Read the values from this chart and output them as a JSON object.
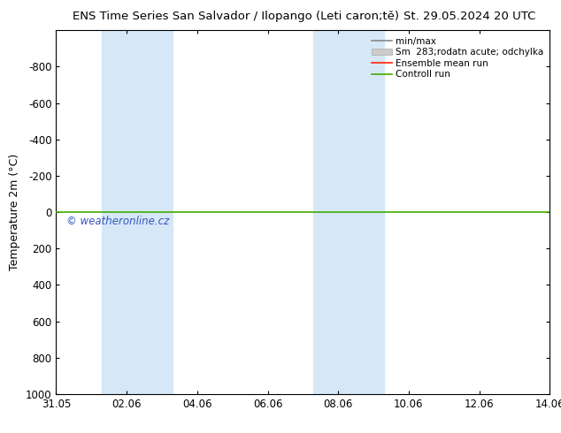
{
  "title_left": "ENS Time Series San Salvador / Ilopango (Leti caron;tě)",
  "title_right": "St. 29.05.2024 20 UTC",
  "ylabel": "Temperature 2m (°C)",
  "ylim_bottom": -1000,
  "ylim_top": 1000,
  "yticks": [
    -800,
    -600,
    -400,
    -200,
    0,
    200,
    400,
    600,
    800,
    1000
  ],
  "xlim_start": 0,
  "xlim_end": 14,
  "xtick_positions": [
    0,
    2,
    4,
    6,
    8,
    10,
    12,
    14
  ],
  "xtick_labels": [
    "31.05",
    "02.06",
    "04.06",
    "06.06",
    "08.06",
    "10.06",
    "12.06",
    "14.06"
  ],
  "shaded_columns": [
    {
      "x_start": 1.3,
      "x_end": 2.0
    },
    {
      "x_start": 2.0,
      "x_end": 3.3
    },
    {
      "x_start": 7.3,
      "x_end": 8.0
    },
    {
      "x_start": 8.0,
      "x_end": 9.3
    }
  ],
  "shade_color": "#d6e8f7",
  "control_run_y": 0,
  "control_run_color": "#44aa00",
  "ensemble_mean_color": "#ff2200",
  "minmax_color": "#888888",
  "std_color": "#cccccc",
  "watermark": "© weatheronline.cz",
  "watermark_color": "#3355bb",
  "background_color": "#ffffff",
  "legend_labels": [
    "min/max",
    "Sm  283;rodatn acute; odchylka",
    "Ensemble mean run",
    "Controll run"
  ],
  "title_fontsize": 9.5,
  "tick_fontsize": 8.5,
  "ylabel_fontsize": 9,
  "legend_fontsize": 7.5
}
